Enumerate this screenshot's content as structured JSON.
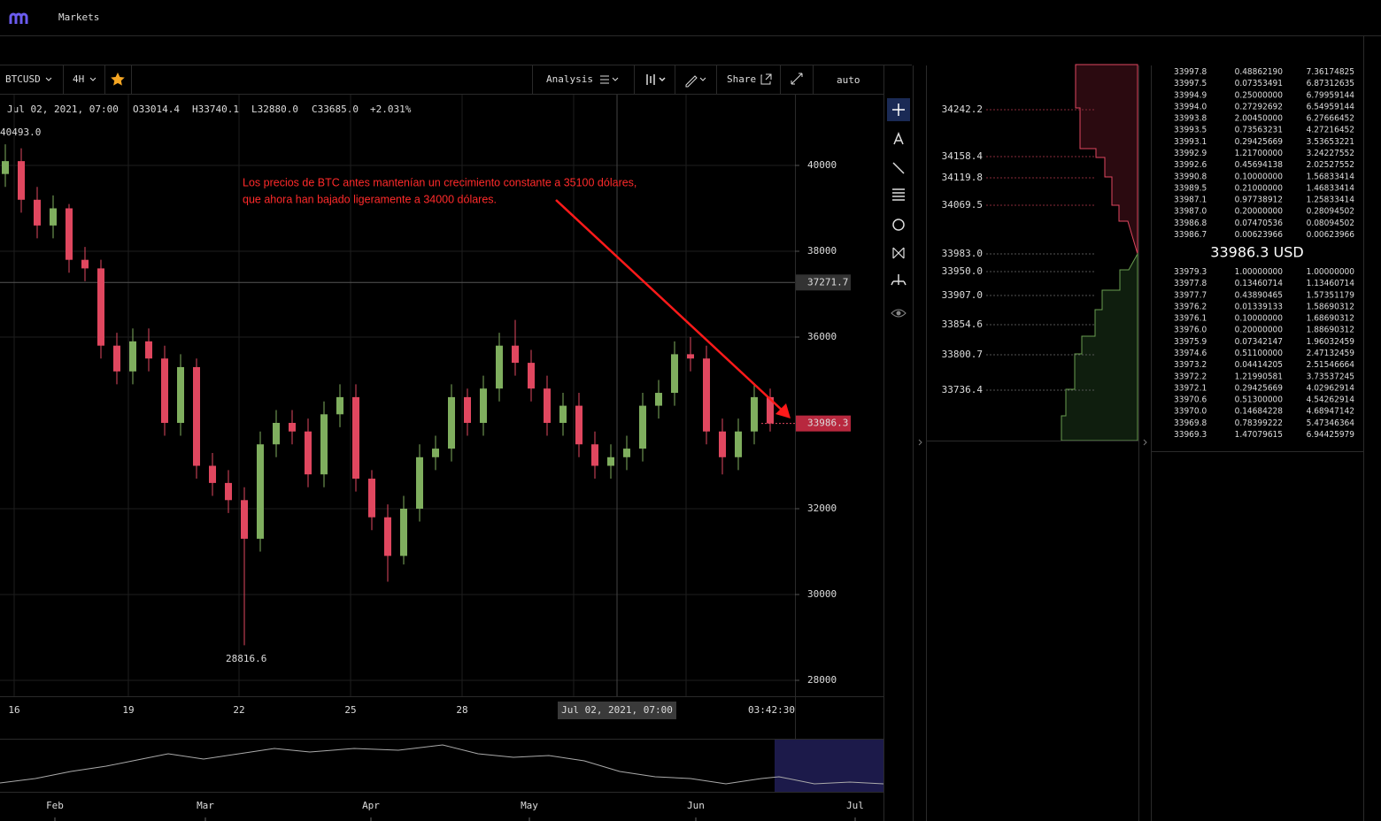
{
  "header": {
    "nav": "Markets"
  },
  "toolbar": {
    "symbol": "BTCUSD",
    "interval": "4H",
    "analysis": "Analysis",
    "share": "Share",
    "scale": "auto"
  },
  "info": {
    "date": "Jul 02, 2021, 07:00",
    "open": "O33014.4",
    "high": "H33740.1",
    "low": "L32880.0",
    "close": "C33685.0",
    "change": "+2.031%"
  },
  "chart_data": {
    "type": "candlestick",
    "open": [
      39800,
      40100,
      39200,
      38600,
      39000,
      37800,
      37600,
      35800,
      35200,
      35900,
      35500,
      34000,
      35300,
      33000,
      32600,
      32200,
      31300,
      33500,
      34000,
      33800,
      32800,
      34200,
      34600,
      32700,
      31800,
      30900,
      32000,
      33200,
      33400,
      34600,
      34000,
      34800,
      35800,
      35400,
      34800,
      34000,
      34400,
      33500,
      33000,
      33200,
      33400,
      34400,
      34700,
      35600,
      35500,
      33800,
      33200,
      33800,
      34600
    ],
    "high": [
      40493,
      40400,
      39500,
      39300,
      39100,
      38100,
      37800,
      36100,
      36200,
      36200,
      35800,
      35600,
      35500,
      33300,
      32900,
      32500,
      33800,
      34300,
      34300,
      34100,
      34500,
      34900,
      34900,
      32900,
      32100,
      32300,
      33500,
      33700,
      34900,
      34800,
      35100,
      36100,
      36400,
      35700,
      35100,
      34700,
      34700,
      33800,
      33500,
      33700,
      34700,
      35000,
      35900,
      36000,
      35800,
      34100,
      34100,
      34900,
      34800
    ],
    "low": [
      39500,
      38900,
      38300,
      38300,
      37500,
      37300,
      35500,
      34900,
      34900,
      35200,
      33700,
      33700,
      32700,
      32300,
      31900,
      28816.6,
      31000,
      33200,
      33500,
      32500,
      32500,
      33900,
      32400,
      31500,
      30300,
      30700,
      31700,
      32900,
      33100,
      33700,
      33700,
      34500,
      35100,
      34500,
      33700,
      33700,
      33200,
      32700,
      32700,
      32900,
      33100,
      34100,
      34400,
      35200,
      33500,
      32800,
      32900,
      33500,
      33800
    ],
    "close": [
      40100,
      39200,
      38600,
      39000,
      37800,
      37600,
      35800,
      35200,
      35900,
      35500,
      34000,
      35300,
      33000,
      32600,
      32200,
      31300,
      33500,
      34000,
      33800,
      32800,
      34200,
      34600,
      32700,
      31800,
      30900,
      32000,
      33200,
      33400,
      34600,
      34000,
      34800,
      35800,
      35400,
      34800,
      34000,
      34400,
      33500,
      33000,
      33200,
      33400,
      34400,
      34700,
      35600,
      35500,
      33800,
      33200,
      33800,
      34600,
      33986.3
    ],
    "up_color": "#7fae5e",
    "down_color": "#e0475f",
    "ylim": [
      27629,
      41649
    ],
    "yticks": [
      28000,
      30000,
      32000,
      36000,
      38000,
      40000
    ],
    "time_labels": [
      "16",
      "19",
      "22",
      "25",
      "28"
    ],
    "crosshair_time": "Jul 02, 2021, 07:00",
    "countdown": "03:42:30",
    "crosshair_price": 37271.7,
    "last_price": 33986.3,
    "max_label": "40493.0",
    "min_label": "28816.6",
    "annotation": [
      "Los precios de BTC antes mantenían un crecimiento constante a 35100 dólares,",
      "que ahora han bajado ligeramente a 34000 dólares."
    ]
  },
  "navigator": {
    "months": [
      "Feb",
      "Mar",
      "Apr",
      "May",
      "Jun",
      "Jul"
    ]
  },
  "depth": {
    "prices": [
      "34242.2",
      "34158.4",
      "34119.8",
      "34069.5",
      "33983.0",
      "33950.0",
      "33907.0",
      "33854.6",
      "33800.7",
      "33736.4"
    ]
  },
  "orderbook": {
    "asks": [
      [
        "33997.8",
        "0.48862190",
        "7.36174825"
      ],
      [
        "33997.5",
        "0.07353491",
        "6.87312635"
      ],
      [
        "33994.9",
        "0.25000000",
        "6.79959144"
      ],
      [
        "33994.0",
        "0.27292692",
        "6.54959144"
      ],
      [
        "33993.8",
        "2.00450000",
        "6.27666452"
      ],
      [
        "33993.5",
        "0.73563231",
        "4.27216452"
      ],
      [
        "33993.1",
        "0.29425669",
        "3.53653221"
      ],
      [
        "33992.9",
        "1.21700000",
        "3.24227552"
      ],
      [
        "33992.6",
        "0.45694138",
        "2.02527552"
      ],
      [
        "33990.8",
        "0.10000000",
        "1.56833414"
      ],
      [
        "33989.5",
        "0.21000000",
        "1.46833414"
      ],
      [
        "33987.1",
        "0.97738912",
        "1.25833414"
      ],
      [
        "33987.0",
        "0.20000000",
        "0.28094502"
      ],
      [
        "33986.8",
        "0.07470536",
        "0.08094502"
      ],
      [
        "33986.7",
        "0.00623966",
        "0.00623966"
      ]
    ],
    "mid": "33986.3 USD",
    "bids": [
      [
        "33979.3",
        "1.00000000",
        "1.00000000"
      ],
      [
        "33977.8",
        "0.13460714",
        "1.13460714"
      ],
      [
        "33977.7",
        "0.43890465",
        "1.57351179"
      ],
      [
        "33976.2",
        "0.01339133",
        "1.58690312"
      ],
      [
        "33976.1",
        "0.10000000",
        "1.68690312"
      ],
      [
        "33976.0",
        "0.20000000",
        "1.88690312"
      ],
      [
        "33975.9",
        "0.07342147",
        "1.96032459"
      ],
      [
        "33974.6",
        "0.51100000",
        "2.47132459"
      ],
      [
        "33973.2",
        "0.04414205",
        "2.51546664"
      ],
      [
        "33972.2",
        "1.21990581",
        "3.73537245"
      ],
      [
        "33972.1",
        "0.29425669",
        "4.02962914"
      ],
      [
        "33970.6",
        "0.51300000",
        "4.54262914"
      ],
      [
        "33970.0",
        "0.14684228",
        "4.68947142"
      ],
      [
        "33969.8",
        "0.78399222",
        "5.47346364"
      ],
      [
        "33969.3",
        "1.47079615",
        "6.94425979"
      ]
    ]
  }
}
